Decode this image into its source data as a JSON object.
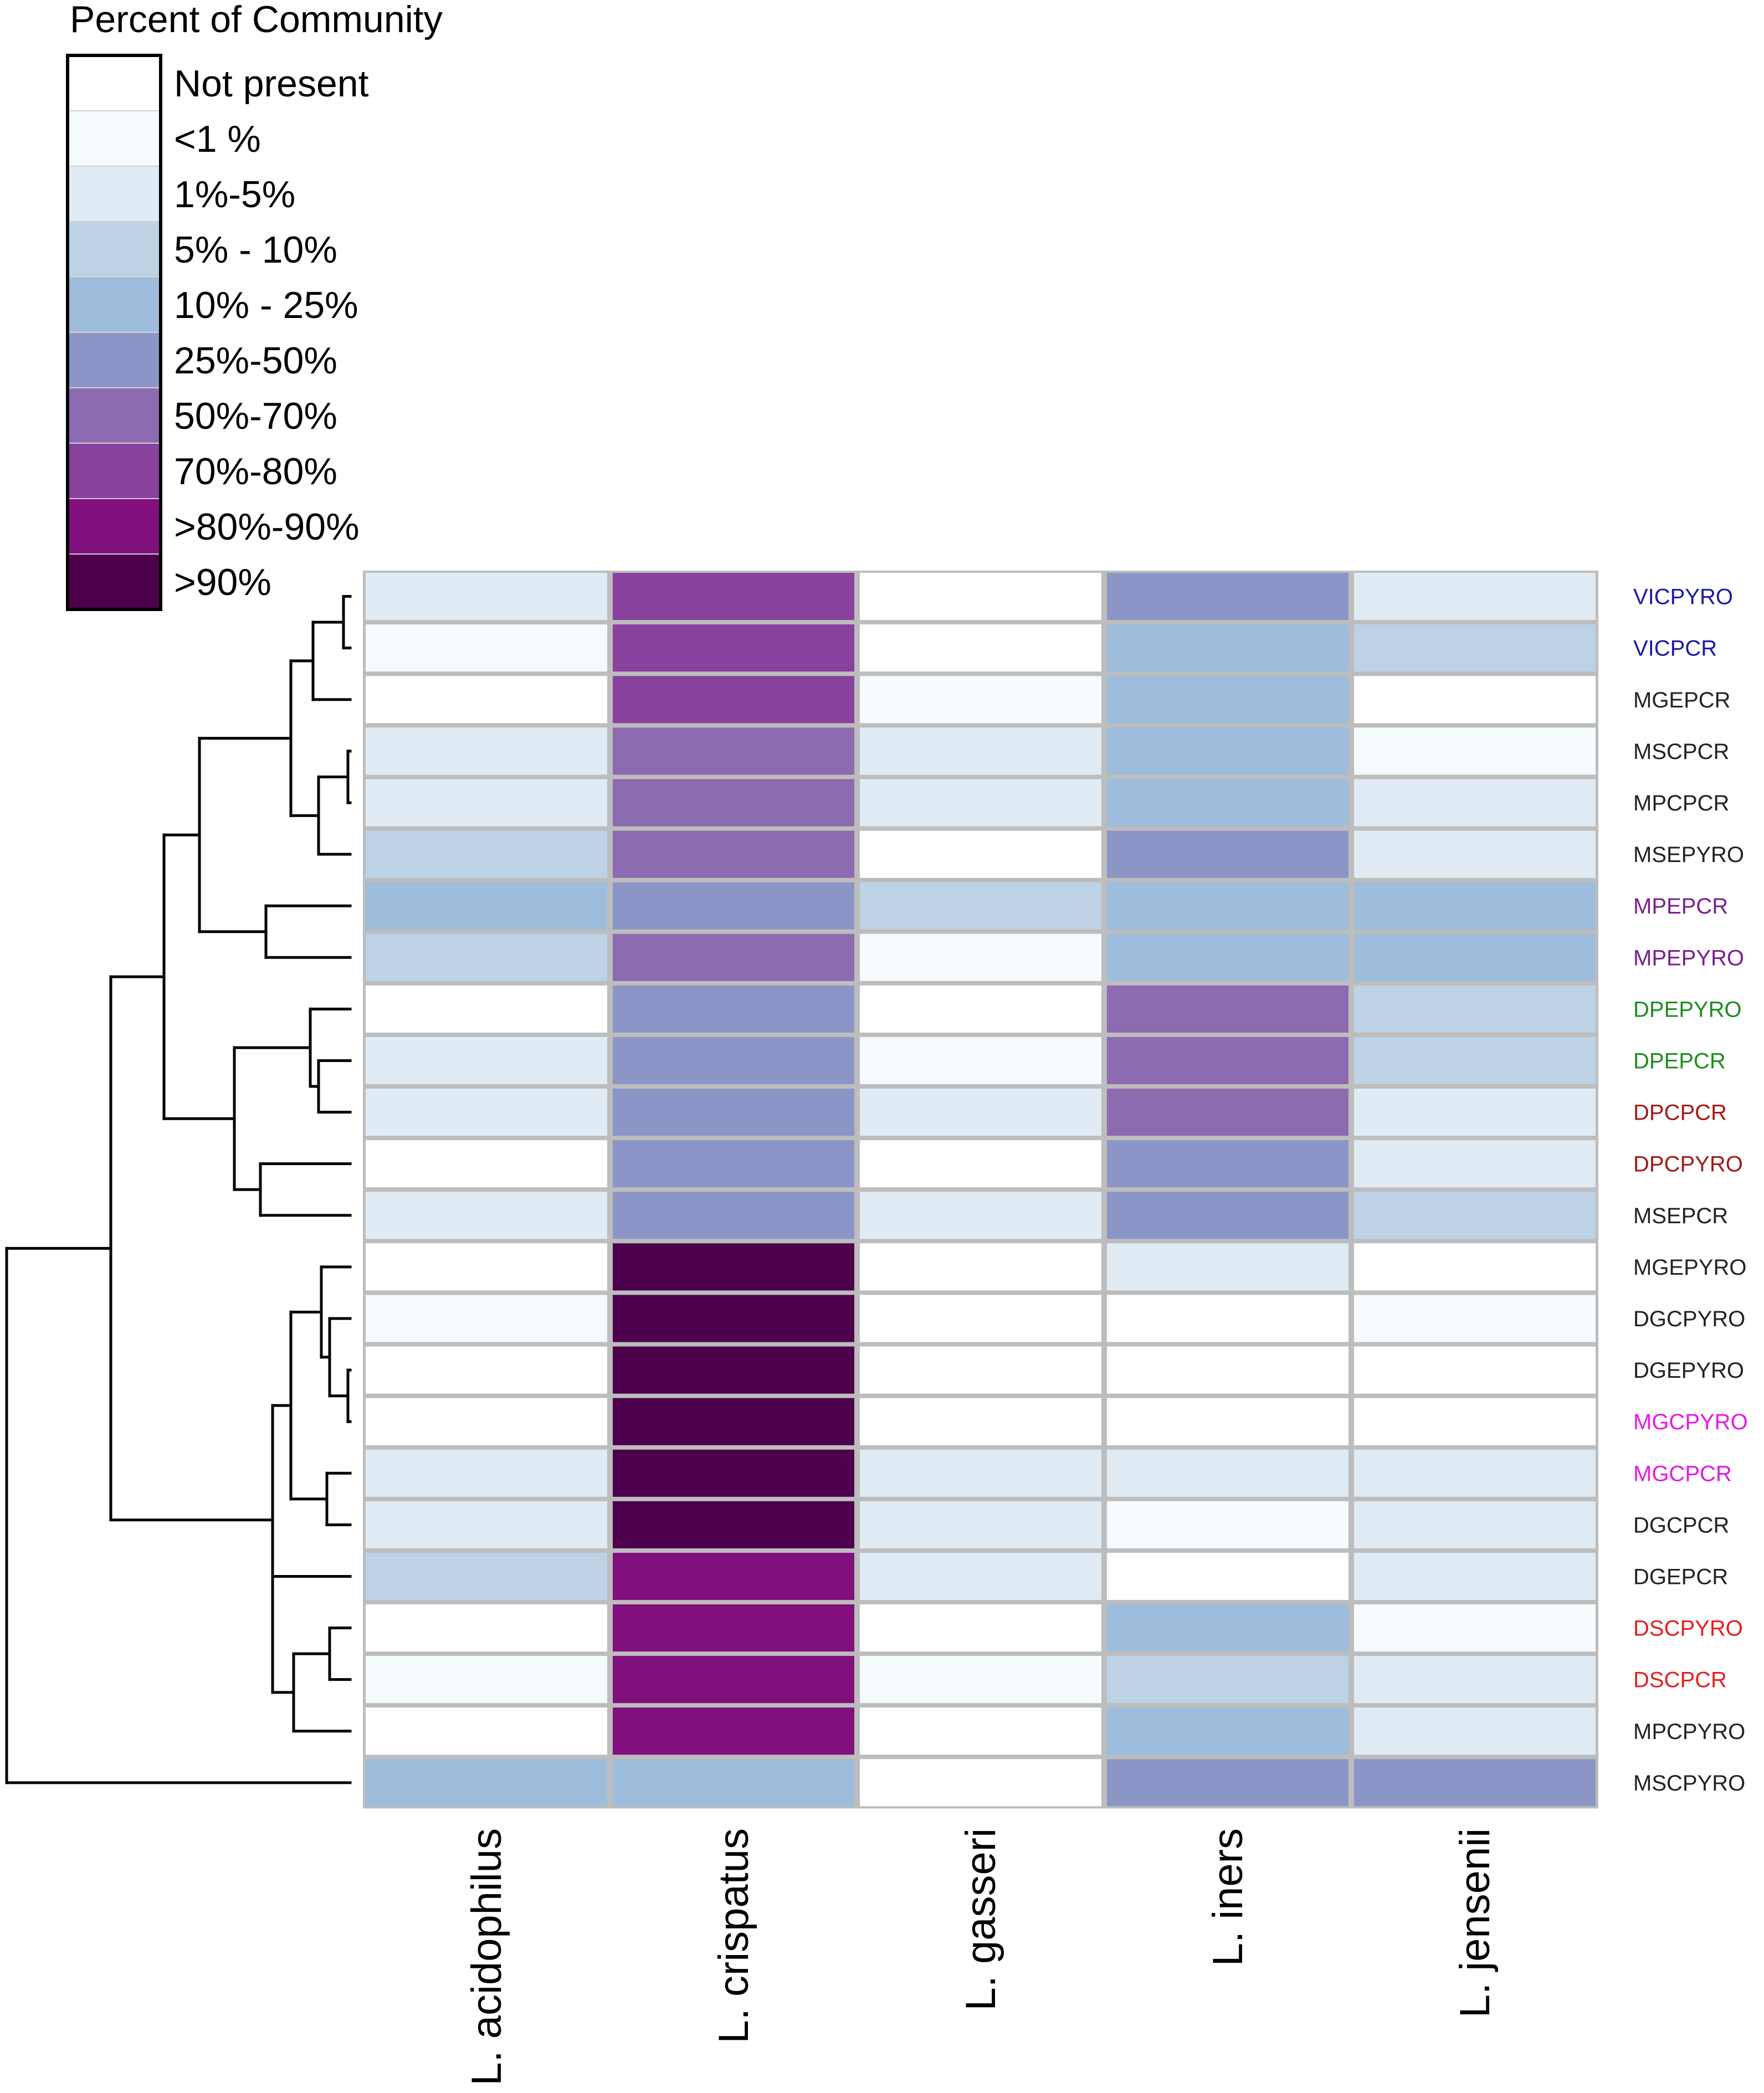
{
  "chart_data": {
    "type": "heatmap",
    "legend": {
      "title": "Percent of Community",
      "levels": [
        {
          "label": "Not present",
          "color": "#ffffff"
        },
        {
          "label": "<1 %",
          "color": "#f5fafc"
        },
        {
          "label": "1%-5%",
          "color": "#e0ebf3"
        },
        {
          "label": "5% - 10%",
          "color": "#bed2e6"
        },
        {
          "label": "10% - 25%",
          "color": "#9ebcdb"
        },
        {
          "label": "25%-50%",
          "color": "#8c96c6"
        },
        {
          "label": "50%-70%",
          "color": "#8c6bb1"
        },
        {
          "label": "70%-80%",
          "color": "#88419d"
        },
        {
          "label": ">80%-90%",
          "color": "#810f7c"
        },
        {
          "label": ">90%",
          "color": "#4d004b"
        }
      ]
    },
    "columns": [
      "L. acidophilus",
      "L. crispatus",
      "L. gasseri",
      "L. iners",
      "L. jensenii"
    ],
    "rows": [
      {
        "label": "VICPYRO",
        "color": "#1a1aa6",
        "levels": [
          2,
          7,
          0,
          5,
          2
        ]
      },
      {
        "label": "VICPCR",
        "color": "#1a1aa6",
        "levels": [
          1,
          7,
          0,
          4,
          3
        ]
      },
      {
        "label": "MGEPCR",
        "color": "#222222",
        "levels": [
          0,
          7,
          1,
          4,
          0
        ]
      },
      {
        "label": "MSCPCR",
        "color": "#222222",
        "levels": [
          2,
          6,
          2,
          4,
          1
        ]
      },
      {
        "label": "MPCPCR",
        "color": "#222222",
        "levels": [
          2,
          6,
          2,
          4,
          2
        ]
      },
      {
        "label": "MSEPYRO",
        "color": "#222222",
        "levels": [
          3,
          6,
          0,
          5,
          2
        ]
      },
      {
        "label": "MPEPCR",
        "color": "#7a1f8c",
        "levels": [
          4,
          5,
          3,
          4,
          4
        ]
      },
      {
        "label": "MPEPYRO",
        "color": "#7a1f8c",
        "levels": [
          3,
          6,
          1,
          4,
          4
        ]
      },
      {
        "label": "DPEPYRO",
        "color": "#1f8c1f",
        "levels": [
          0,
          5,
          0,
          6,
          3
        ]
      },
      {
        "label": "DPEPCR",
        "color": "#1f8c1f",
        "levels": [
          2,
          5,
          1,
          6,
          3
        ]
      },
      {
        "label": "DPCPCR",
        "color": "#a31a1a",
        "levels": [
          2,
          5,
          2,
          6,
          2
        ]
      },
      {
        "label": "DPCPYRO",
        "color": "#a31a1a",
        "levels": [
          0,
          5,
          0,
          5,
          2
        ]
      },
      {
        "label": "MSEPCR",
        "color": "#222222",
        "levels": [
          2,
          5,
          2,
          5,
          3
        ]
      },
      {
        "label": "MGEPYRO",
        "color": "#222222",
        "levels": [
          0,
          9,
          0,
          2,
          0
        ]
      },
      {
        "label": "DGCPYRO",
        "color": "#222222",
        "levels": [
          1,
          9,
          0,
          0,
          1
        ]
      },
      {
        "label": "DGEPYRO",
        "color": "#222222",
        "levels": [
          0,
          9,
          0,
          0,
          0
        ]
      },
      {
        "label": "MGCPYRO",
        "color": "#e619e6",
        "levels": [
          0,
          9,
          0,
          0,
          0
        ]
      },
      {
        "label": "MGCPCR",
        "color": "#e619e6",
        "levels": [
          2,
          9,
          2,
          2,
          2
        ]
      },
      {
        "label": "DGCPCR",
        "color": "#222222",
        "levels": [
          2,
          9,
          2,
          1,
          2
        ]
      },
      {
        "label": "DGEPCR",
        "color": "#222222",
        "levels": [
          3,
          8,
          2,
          0,
          2
        ]
      },
      {
        "label": "DSCPYRO",
        "color": "#e62020",
        "levels": [
          0,
          8,
          0,
          4,
          1
        ]
      },
      {
        "label": "DSCPCR",
        "color": "#e62020",
        "levels": [
          1,
          8,
          1,
          3,
          2
        ]
      },
      {
        "label": "MPCPYRO",
        "color": "#222222",
        "levels": [
          0,
          8,
          0,
          4,
          2
        ]
      },
      {
        "label": "MSCPYRO",
        "color": "#222222",
        "levels": [
          4,
          4,
          0,
          5,
          5
        ]
      }
    ]
  }
}
